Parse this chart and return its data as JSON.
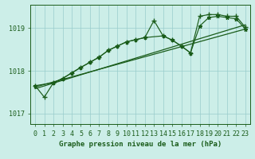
{
  "title": "Graphe pression niveau de la mer (hPa)",
  "background_color": "#cceee8",
  "plot_bg_color": "#cceee8",
  "grid_color": "#99cccc",
  "line_color": "#1a5c1a",
  "ylim": [
    1016.75,
    1019.55
  ],
  "yticks": [
    1017,
    1018,
    1019
  ],
  "xlim": [
    -0.5,
    23.5
  ],
  "xticks": [
    0,
    1,
    2,
    3,
    4,
    5,
    6,
    7,
    8,
    9,
    10,
    11,
    12,
    13,
    14,
    15,
    16,
    17,
    18,
    19,
    20,
    21,
    22,
    23
  ],
  "series_jagged_x": [
    0,
    1,
    2,
    3,
    4,
    5,
    6,
    7,
    8,
    9,
    10,
    11,
    12,
    13,
    14,
    15,
    16,
    17,
    18,
    19,
    20,
    21,
    22,
    23
  ],
  "series_jagged_y": [
    1017.65,
    1017.38,
    1017.72,
    1017.82,
    1017.95,
    1018.08,
    1018.2,
    1018.32,
    1018.48,
    1018.58,
    1018.68,
    1018.73,
    1018.78,
    1019.18,
    1018.82,
    1018.72,
    1018.58,
    1018.42,
    1019.28,
    1019.32,
    1019.32,
    1019.28,
    1019.28,
    1019.02
  ],
  "series_smooth_x": [
    0,
    2,
    3,
    4,
    5,
    6,
    7,
    8,
    9,
    10,
    11,
    12,
    14,
    15,
    16,
    17,
    18,
    19,
    20,
    21,
    22,
    23
  ],
  "series_smooth_y": [
    1017.65,
    1017.72,
    1017.82,
    1017.95,
    1018.08,
    1018.2,
    1018.32,
    1018.48,
    1018.58,
    1018.68,
    1018.73,
    1018.78,
    1018.82,
    1018.72,
    1018.58,
    1018.42,
    1019.05,
    1019.25,
    1019.28,
    1019.25,
    1019.22,
    1018.98
  ],
  "trend1_x": [
    0,
    23
  ],
  "trend1_y": [
    1017.62,
    1018.98
  ],
  "trend2_x": [
    0,
    23
  ],
  "trend2_y": [
    1017.58,
    1019.08
  ],
  "xlabel_fontsize": 6.5,
  "tick_fontsize": 6,
  "ylabel_fontsize": 6
}
